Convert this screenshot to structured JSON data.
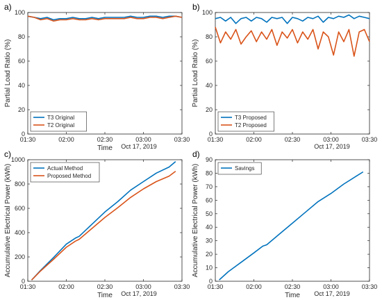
{
  "chart_data": [
    {
      "panel": "a)",
      "type": "line",
      "xlabel": "Time",
      "ylabel": "Partial Load Ratio (%)",
      "date_note": "Oct 17, 2019",
      "x_ticks": [
        "01:30",
        "02:00",
        "02:30",
        "03:00",
        "03:30"
      ],
      "xlim": [
        0,
        120
      ],
      "ylim": [
        0,
        100
      ],
      "y_ticks": [
        0,
        20,
        40,
        60,
        80,
        100
      ],
      "legend_position": "bottom-left",
      "series": [
        {
          "name": "T3 Original",
          "color": "#0072BD",
          "x": [
            0,
            5,
            10,
            15,
            20,
            25,
            30,
            35,
            40,
            45,
            50,
            55,
            60,
            65,
            70,
            75,
            80,
            85,
            90,
            95,
            100,
            105,
            110,
            115,
            120
          ],
          "y": [
            97,
            96,
            95,
            96,
            94,
            95,
            95,
            96,
            95,
            95,
            96,
            95,
            96,
            96,
            96,
            96,
            97,
            96,
            96,
            97,
            97,
            96,
            97,
            97,
            96
          ]
        },
        {
          "name": "T2 Original",
          "color": "#D95319",
          "x": [
            0,
            5,
            10,
            15,
            20,
            25,
            30,
            35,
            40,
            45,
            50,
            55,
            60,
            65,
            70,
            75,
            80,
            85,
            90,
            95,
            100,
            105,
            110,
            115,
            120
          ],
          "y": [
            97,
            96,
            94,
            95,
            93,
            94,
            94,
            95,
            94,
            94,
            95,
            94,
            95,
            95,
            95,
            95,
            96,
            95,
            95,
            96,
            96,
            95,
            96,
            97,
            96
          ]
        }
      ]
    },
    {
      "panel": "b)",
      "type": "line",
      "xlabel": "",
      "ylabel": "Partial Load Ratio (%)",
      "date_note": "Oct 17, 2019",
      "x_ticks": [
        "01:30",
        "02:00",
        "02:30",
        "03:00",
        "03:30"
      ],
      "xlim": [
        0,
        120
      ],
      "ylim": [
        0,
        100
      ],
      "y_ticks": [
        0,
        20,
        40,
        60,
        80,
        100
      ],
      "legend_position": "bottom-left",
      "series": [
        {
          "name": "T3 Proposed",
          "color": "#0072BD",
          "x": [
            0,
            4,
            8,
            12,
            16,
            20,
            24,
            28,
            32,
            36,
            40,
            44,
            48,
            52,
            56,
            60,
            64,
            68,
            72,
            76,
            80,
            84,
            88,
            92,
            96,
            100,
            104,
            108,
            112,
            116,
            120
          ],
          "y": [
            95,
            96,
            93,
            96,
            91,
            95,
            96,
            93,
            96,
            95,
            92,
            96,
            95,
            96,
            91,
            96,
            95,
            93,
            96,
            95,
            97,
            92,
            96,
            95,
            97,
            96,
            98,
            95,
            97,
            96,
            95
          ]
        },
        {
          "name": "T2 Proposed",
          "color": "#D95319",
          "x": [
            0,
            4,
            8,
            12,
            16,
            20,
            24,
            28,
            32,
            36,
            40,
            44,
            48,
            52,
            56,
            60,
            64,
            68,
            72,
            76,
            80,
            84,
            88,
            92,
            96,
            100,
            104,
            108,
            112,
            116,
            120
          ],
          "y": [
            88,
            75,
            84,
            78,
            86,
            74,
            80,
            85,
            76,
            84,
            78,
            86,
            73,
            84,
            79,
            86,
            75,
            84,
            78,
            86,
            70,
            84,
            80,
            65,
            84,
            76,
            86,
            64,
            84,
            86,
            76
          ]
        }
      ]
    },
    {
      "panel": "c)",
      "type": "line",
      "xlabel": "Time",
      "ylabel": "Accumulative Electrical Power (kWh)",
      "date_note": "Oct 17, 2019",
      "x_ticks": [
        "01:30",
        "02:00",
        "02:30",
        "03:00",
        "03:30"
      ],
      "xlim": [
        0,
        120
      ],
      "ylim": [
        0,
        1000
      ],
      "y_ticks": [
        0,
        200,
        400,
        600,
        800,
        1000
      ],
      "legend_position": "top-left",
      "series": [
        {
          "name": "Actual Method",
          "color": "#0072BD",
          "x": [
            3,
            10,
            20,
            30,
            37,
            40,
            50,
            60,
            70,
            80,
            90,
            100,
            110,
            115
          ],
          "y": [
            10,
            90,
            195,
            305,
            355,
            370,
            470,
            570,
            655,
            750,
            820,
            890,
            940,
            985
          ]
        },
        {
          "name": "Proposed Method",
          "color": "#D95319",
          "x": [
            3,
            10,
            20,
            30,
            37,
            40,
            50,
            60,
            70,
            80,
            90,
            100,
            110,
            115
          ],
          "y": [
            10,
            85,
            180,
            280,
            330,
            345,
            435,
            525,
            605,
            690,
            760,
            820,
            865,
            905
          ]
        }
      ]
    },
    {
      "panel": "d)",
      "type": "line",
      "xlabel": "Time",
      "ylabel": "Accumulative Electrical Power (kWh)",
      "date_note": "Oct 17, 2019",
      "x_ticks": [
        "01:30",
        "02:00",
        "02:30",
        "03:00",
        "03:30"
      ],
      "xlim": [
        0,
        120
      ],
      "ylim": [
        0,
        90
      ],
      "y_ticks": [
        0,
        10,
        20,
        30,
        40,
        50,
        60,
        70,
        80,
        90
      ],
      "legend_position": "top-left",
      "series": [
        {
          "name": "Savings",
          "color": "#0072BD",
          "x": [
            3,
            10,
            20,
            30,
            37,
            40,
            50,
            60,
            70,
            80,
            90,
            100,
            110,
            115
          ],
          "y": [
            1,
            7,
            14,
            21,
            26,
            27,
            35,
            43,
            51,
            59,
            65,
            72,
            78,
            81
          ]
        }
      ]
    }
  ]
}
